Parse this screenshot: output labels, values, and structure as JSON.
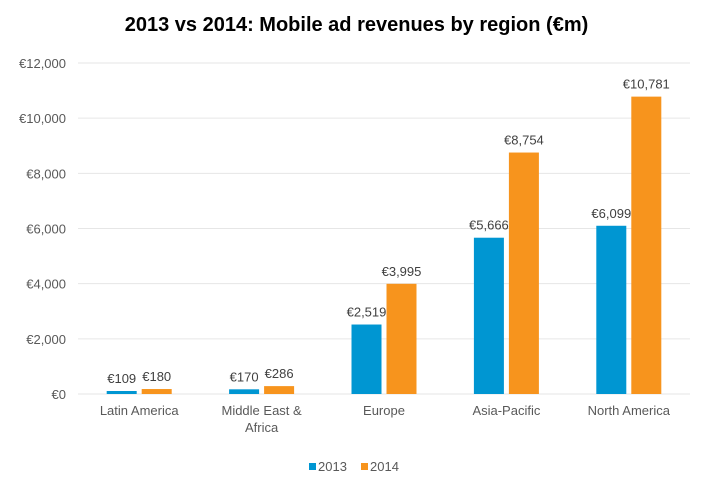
{
  "chart_data": {
    "type": "bar",
    "title": "2013 vs 2014: Mobile ad revenues by region (€m)",
    "xlabel": "",
    "ylabel": "",
    "categories": [
      "Latin America",
      "Middle East & Africa",
      "Europe",
      "Asia-Pacific",
      "North America"
    ],
    "category_label_lines": [
      [
        "Latin America"
      ],
      [
        "Middle East &",
        "Africa"
      ],
      [
        "Europe"
      ],
      [
        "Asia-Pacific"
      ],
      [
        "North America"
      ]
    ],
    "series": [
      {
        "name": "2013",
        "color": "#0096d2",
        "values": [
          109,
          170,
          2519,
          5666,
          6099
        ],
        "labels": [
          "€109",
          "€170",
          "€2,519",
          "€5,666",
          "€6,099"
        ]
      },
      {
        "name": "2014",
        "color": "#f7941d",
        "values": [
          180,
          286,
          3995,
          8754,
          10781
        ],
        "labels": [
          "€180",
          "€286",
          "€3,995",
          "€8,754",
          "€10,781"
        ]
      }
    ],
    "ylim": [
      0,
      12000
    ],
    "yticks": [
      0,
      2000,
      4000,
      6000,
      8000,
      10000,
      12000
    ],
    "ytick_labels": [
      "€0",
      "€2,000",
      "€4,000",
      "€6,000",
      "€8,000",
      "€10,000",
      "€12,000"
    ],
    "grid": true,
    "legend": {
      "position": "bottom",
      "entries": [
        "2013",
        "2014"
      ]
    },
    "colors": {
      "gridline": "#e6e6e6",
      "axis_text": "#595959",
      "title": "#000000"
    }
  }
}
